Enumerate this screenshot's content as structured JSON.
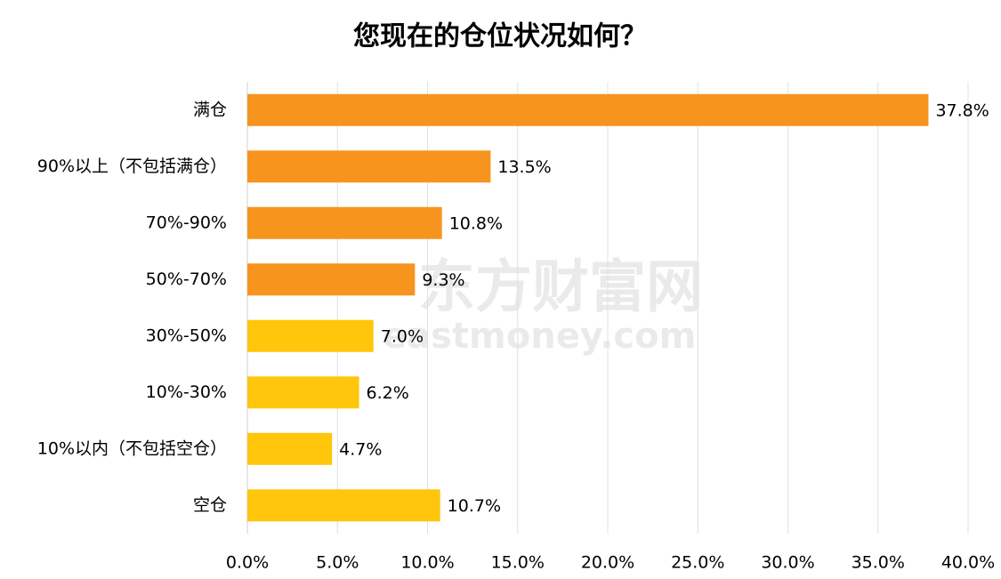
{
  "chart_data": {
    "type": "bar",
    "orientation": "horizontal",
    "title": "您现在的仓位状况如何？",
    "categories": [
      "满仓",
      "90%以上（不包括满仓）",
      "70%-90%",
      "50%-70%",
      "30%-50%",
      "10%-30%",
      "10%以内（不包括空仓）",
      "空仓"
    ],
    "values": [
      37.8,
      13.5,
      10.8,
      9.3,
      7.0,
      6.2,
      4.7,
      10.7
    ],
    "value_labels": [
      "37.8%",
      "13.5%",
      "10.8%",
      "9.3%",
      "7.0%",
      "6.2%",
      "4.7%",
      "10.7%"
    ],
    "colors": [
      "#f7941e",
      "#f7941e",
      "#f7941e",
      "#f7941e",
      "#ffc60b",
      "#ffc60b",
      "#ffc60b",
      "#ffc60b"
    ],
    "xlim": [
      0,
      40
    ],
    "xticks": [
      {
        "value": 0,
        "label": "0.0%"
      },
      {
        "value": 5,
        "label": "5.0%"
      },
      {
        "value": 10,
        "label": "10.0%"
      },
      {
        "value": 15,
        "label": "15.0%"
      },
      {
        "value": 20,
        "label": "20.0%"
      },
      {
        "value": 25,
        "label": "25.0%"
      },
      {
        "value": 30,
        "label": "30.0%"
      },
      {
        "value": 35,
        "label": "35.0%"
      },
      {
        "value": 40,
        "label": "40.0%"
      }
    ],
    "grid": true,
    "watermark": [
      "东方财富网",
      "eastmoney.com"
    ]
  }
}
